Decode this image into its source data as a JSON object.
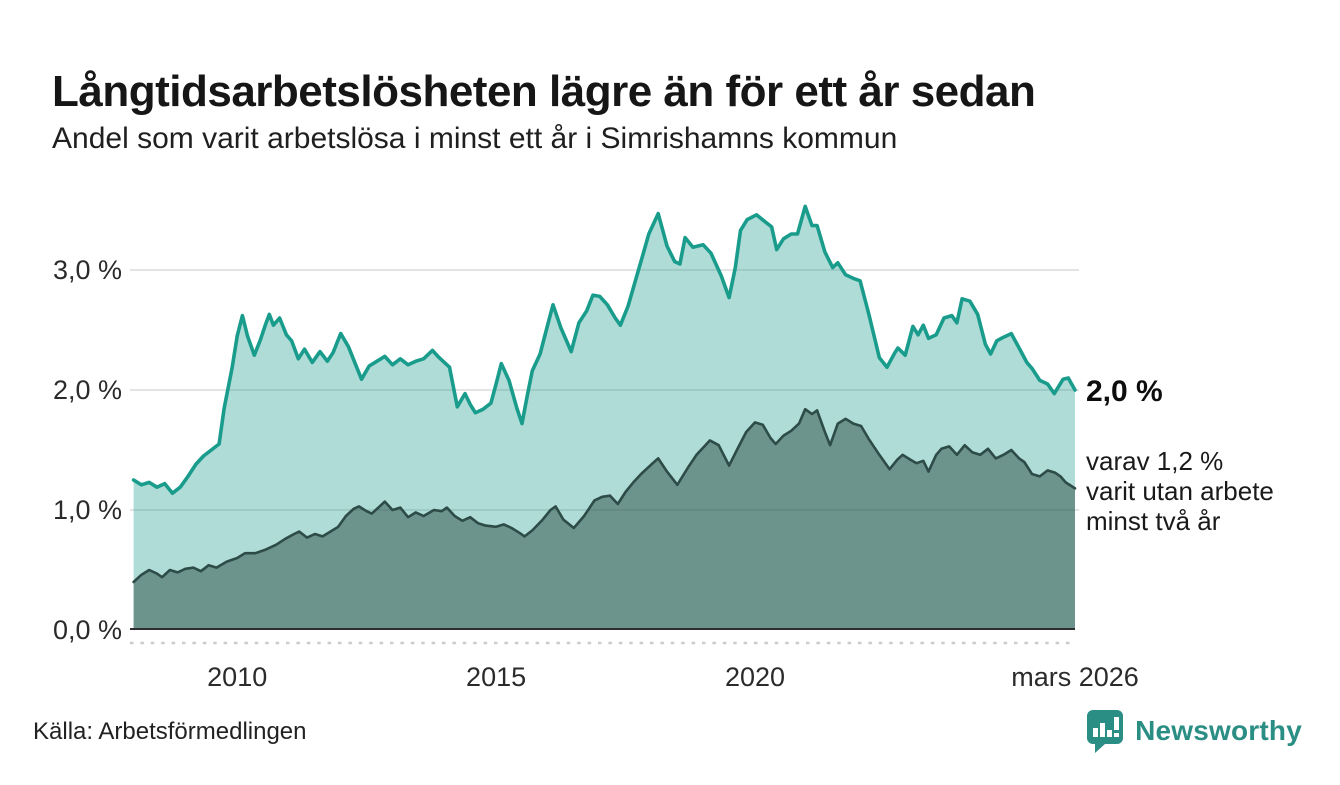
{
  "header": {
    "title": "Långtidsarbetslösheten lägre än för ett år sedan",
    "subtitle": "Andel som varit arbetslösa i minst ett år i Simrishamns kommun"
  },
  "annotations": {
    "latest_total": "2,0 %",
    "note_lines": [
      "varav 1,2 %",
      "varit utan arbete",
      "minst två år"
    ]
  },
  "footer": {
    "source": "Källa: Arbetsförmedlingen",
    "brand": "Newsworthy"
  },
  "colors": {
    "teal_line": "#1a9c8c",
    "teal_fill": "rgba(26,156,140,0.35)",
    "dark_line": "#2e4c47",
    "dark_fill": "rgba(37,66,61,0.48)",
    "gridline": "#dcdcdc",
    "axis_line": "#2f2f2f",
    "axis_text": "#2b2b2b",
    "tick_dash": "#cccccc",
    "brand_teal": "#2b8e85"
  },
  "chart_data": {
    "type": "area",
    "title": "Långtidsarbetslösheten lägre än för ett år sedan",
    "subtitle": "Andel som varit arbetslösa i minst ett år i Simrishamns kommun",
    "xlabel": "",
    "ylabel": "",
    "x_range": [
      2007.93,
      2026.18
    ],
    "y_range": [
      0,
      3.6
    ],
    "grid": true,
    "legend": "none",
    "x_ticks": [
      {
        "label": "2010",
        "year": 2010
      },
      {
        "label": "2015",
        "year": 2015
      },
      {
        "label": "2020",
        "year": 2020
      },
      {
        "label": "mars 2026",
        "year": 2026.18
      }
    ],
    "y_ticks": [
      {
        "label": "0,0 %",
        "value": 0
      },
      {
        "label": "1,0 %",
        "value": 1
      },
      {
        "label": "2,0 %",
        "value": 2
      },
      {
        "label": "3,0 %",
        "value": 3
      }
    ],
    "series": [
      {
        "name": "Arbetslösa minst ett år",
        "end_label": "2,0 %",
        "points": [
          [
            2008.0,
            1.25
          ],
          [
            2008.15,
            1.21
          ],
          [
            2008.3,
            1.23
          ],
          [
            2008.45,
            1.19
          ],
          [
            2008.6,
            1.22
          ],
          [
            2008.75,
            1.14
          ],
          [
            2008.9,
            1.19
          ],
          [
            2009.05,
            1.28
          ],
          [
            2009.2,
            1.38
          ],
          [
            2009.35,
            1.45
          ],
          [
            2009.5,
            1.5
          ],
          [
            2009.65,
            1.55
          ],
          [
            2009.75,
            1.85
          ],
          [
            2009.9,
            2.18
          ],
          [
            2010.0,
            2.45
          ],
          [
            2010.1,
            2.62
          ],
          [
            2010.2,
            2.45
          ],
          [
            2010.33,
            2.29
          ],
          [
            2010.45,
            2.42
          ],
          [
            2010.55,
            2.55
          ],
          [
            2010.62,
            2.63
          ],
          [
            2010.7,
            2.54
          ],
          [
            2010.82,
            2.6
          ],
          [
            2010.95,
            2.46
          ],
          [
            2011.05,
            2.41
          ],
          [
            2011.18,
            2.26
          ],
          [
            2011.3,
            2.34
          ],
          [
            2011.45,
            2.23
          ],
          [
            2011.6,
            2.32
          ],
          [
            2011.74,
            2.24
          ],
          [
            2011.85,
            2.31
          ],
          [
            2012.0,
            2.47
          ],
          [
            2012.15,
            2.36
          ],
          [
            2012.28,
            2.22
          ],
          [
            2012.4,
            2.09
          ],
          [
            2012.55,
            2.2
          ],
          [
            2012.7,
            2.24
          ],
          [
            2012.85,
            2.28
          ],
          [
            2013.0,
            2.21
          ],
          [
            2013.15,
            2.26
          ],
          [
            2013.3,
            2.21
          ],
          [
            2013.45,
            2.24
          ],
          [
            2013.6,
            2.26
          ],
          [
            2013.77,
            2.33
          ],
          [
            2013.9,
            2.27
          ],
          [
            2014.1,
            2.19
          ],
          [
            2014.25,
            1.86
          ],
          [
            2014.4,
            1.97
          ],
          [
            2014.5,
            1.88
          ],
          [
            2014.6,
            1.81
          ],
          [
            2014.75,
            1.84
          ],
          [
            2014.9,
            1.89
          ],
          [
            2015.0,
            2.05
          ],
          [
            2015.1,
            2.22
          ],
          [
            2015.25,
            2.08
          ],
          [
            2015.4,
            1.85
          ],
          [
            2015.5,
            1.72
          ],
          [
            2015.6,
            1.95
          ],
          [
            2015.7,
            2.16
          ],
          [
            2015.85,
            2.3
          ],
          [
            2016.0,
            2.55
          ],
          [
            2016.1,
            2.71
          ],
          [
            2016.25,
            2.52
          ],
          [
            2016.45,
            2.32
          ],
          [
            2016.6,
            2.56
          ],
          [
            2016.75,
            2.66
          ],
          [
            2016.87,
            2.79
          ],
          [
            2017.0,
            2.78
          ],
          [
            2017.15,
            2.71
          ],
          [
            2017.3,
            2.6
          ],
          [
            2017.4,
            2.54
          ],
          [
            2017.55,
            2.7
          ],
          [
            2017.65,
            2.85
          ],
          [
            2017.85,
            3.15
          ],
          [
            2017.95,
            3.3
          ],
          [
            2018.13,
            3.47
          ],
          [
            2018.3,
            3.2
          ],
          [
            2018.45,
            3.07
          ],
          [
            2018.55,
            3.05
          ],
          [
            2018.65,
            3.27
          ],
          [
            2018.8,
            3.19
          ],
          [
            2019.0,
            3.21
          ],
          [
            2019.15,
            3.14
          ],
          [
            2019.35,
            2.95
          ],
          [
            2019.5,
            2.77
          ],
          [
            2019.62,
            3.02
          ],
          [
            2019.72,
            3.33
          ],
          [
            2019.85,
            3.42
          ],
          [
            2020.03,
            3.46
          ],
          [
            2020.2,
            3.4
          ],
          [
            2020.32,
            3.36
          ],
          [
            2020.42,
            3.17
          ],
          [
            2020.55,
            3.26
          ],
          [
            2020.7,
            3.3
          ],
          [
            2020.82,
            3.3
          ],
          [
            2020.97,
            3.53
          ],
          [
            2021.1,
            3.37
          ],
          [
            2021.2,
            3.37
          ],
          [
            2021.35,
            3.15
          ],
          [
            2021.5,
            3.02
          ],
          [
            2021.6,
            3.06
          ],
          [
            2021.75,
            2.96
          ],
          [
            2021.9,
            2.93
          ],
          [
            2022.03,
            2.91
          ],
          [
            2022.2,
            2.63
          ],
          [
            2022.4,
            2.27
          ],
          [
            2022.55,
            2.19
          ],
          [
            2022.7,
            2.31
          ],
          [
            2022.76,
            2.35
          ],
          [
            2022.9,
            2.29
          ],
          [
            2023.05,
            2.53
          ],
          [
            2023.15,
            2.46
          ],
          [
            2023.25,
            2.54
          ],
          [
            2023.35,
            2.43
          ],
          [
            2023.5,
            2.46
          ],
          [
            2023.65,
            2.6
          ],
          [
            2023.8,
            2.62
          ],
          [
            2023.9,
            2.56
          ],
          [
            2024.0,
            2.76
          ],
          [
            2024.15,
            2.74
          ],
          [
            2024.3,
            2.63
          ],
          [
            2024.45,
            2.38
          ],
          [
            2024.55,
            2.3
          ],
          [
            2024.67,
            2.41
          ],
          [
            2024.8,
            2.44
          ],
          [
            2024.95,
            2.47
          ],
          [
            2025.1,
            2.35
          ],
          [
            2025.25,
            2.23
          ],
          [
            2025.35,
            2.18
          ],
          [
            2025.5,
            2.08
          ],
          [
            2025.65,
            2.05
          ],
          [
            2025.78,
            1.97
          ],
          [
            2025.95,
            2.09
          ],
          [
            2026.05,
            2.1
          ],
          [
            2026.18,
            2.0
          ]
        ]
      },
      {
        "name": "Varav utan arbete minst två år",
        "end_label": "1,2 %",
        "points": [
          [
            2008.0,
            0.4
          ],
          [
            2008.15,
            0.46
          ],
          [
            2008.3,
            0.5
          ],
          [
            2008.45,
            0.47
          ],
          [
            2008.55,
            0.44
          ],
          [
            2008.7,
            0.5
          ],
          [
            2008.85,
            0.48
          ],
          [
            2009.0,
            0.51
          ],
          [
            2009.15,
            0.52
          ],
          [
            2009.3,
            0.49
          ],
          [
            2009.45,
            0.54
          ],
          [
            2009.6,
            0.52
          ],
          [
            2009.8,
            0.57
          ],
          [
            2010.0,
            0.6
          ],
          [
            2010.15,
            0.64
          ],
          [
            2010.35,
            0.64
          ],
          [
            2010.55,
            0.67
          ],
          [
            2010.75,
            0.71
          ],
          [
            2010.93,
            0.76
          ],
          [
            2011.1,
            0.8
          ],
          [
            2011.2,
            0.82
          ],
          [
            2011.35,
            0.77
          ],
          [
            2011.5,
            0.8
          ],
          [
            2011.65,
            0.78
          ],
          [
            2011.8,
            0.82
          ],
          [
            2011.95,
            0.86
          ],
          [
            2012.1,
            0.95
          ],
          [
            2012.25,
            1.01
          ],
          [
            2012.35,
            1.03
          ],
          [
            2012.5,
            0.99
          ],
          [
            2012.6,
            0.97
          ],
          [
            2012.75,
            1.03
          ],
          [
            2012.85,
            1.07
          ],
          [
            2013.0,
            1.0
          ],
          [
            2013.15,
            1.02
          ],
          [
            2013.3,
            0.94
          ],
          [
            2013.45,
            0.98
          ],
          [
            2013.6,
            0.95
          ],
          [
            2013.8,
            1.0
          ],
          [
            2013.95,
            0.99
          ],
          [
            2014.05,
            1.02
          ],
          [
            2014.2,
            0.95
          ],
          [
            2014.35,
            0.91
          ],
          [
            2014.5,
            0.94
          ],
          [
            2014.65,
            0.89
          ],
          [
            2014.8,
            0.87
          ],
          [
            2015.0,
            0.86
          ],
          [
            2015.15,
            0.88
          ],
          [
            2015.3,
            0.85
          ],
          [
            2015.45,
            0.81
          ],
          [
            2015.55,
            0.78
          ],
          [
            2015.7,
            0.83
          ],
          [
            2015.9,
            0.92
          ],
          [
            2016.05,
            1.0
          ],
          [
            2016.15,
            1.03
          ],
          [
            2016.3,
            0.92
          ],
          [
            2016.5,
            0.85
          ],
          [
            2016.7,
            0.95
          ],
          [
            2016.9,
            1.08
          ],
          [
            2017.05,
            1.11
          ],
          [
            2017.2,
            1.12
          ],
          [
            2017.35,
            1.05
          ],
          [
            2017.5,
            1.15
          ],
          [
            2017.65,
            1.23
          ],
          [
            2017.8,
            1.3
          ],
          [
            2018.0,
            1.38
          ],
          [
            2018.13,
            1.43
          ],
          [
            2018.3,
            1.32
          ],
          [
            2018.5,
            1.21
          ],
          [
            2018.7,
            1.35
          ],
          [
            2018.87,
            1.46
          ],
          [
            2019.0,
            1.52
          ],
          [
            2019.13,
            1.58
          ],
          [
            2019.3,
            1.54
          ],
          [
            2019.5,
            1.37
          ],
          [
            2019.65,
            1.5
          ],
          [
            2019.83,
            1.65
          ],
          [
            2020.0,
            1.73
          ],
          [
            2020.15,
            1.71
          ],
          [
            2020.3,
            1.6
          ],
          [
            2020.4,
            1.55
          ],
          [
            2020.55,
            1.62
          ],
          [
            2020.7,
            1.66
          ],
          [
            2020.85,
            1.72
          ],
          [
            2020.97,
            1.84
          ],
          [
            2021.1,
            1.8
          ],
          [
            2021.2,
            1.83
          ],
          [
            2021.35,
            1.65
          ],
          [
            2021.45,
            1.54
          ],
          [
            2021.6,
            1.72
          ],
          [
            2021.75,
            1.76
          ],
          [
            2021.9,
            1.72
          ],
          [
            2022.05,
            1.7
          ],
          [
            2022.2,
            1.59
          ],
          [
            2022.4,
            1.46
          ],
          [
            2022.6,
            1.34
          ],
          [
            2022.75,
            1.42
          ],
          [
            2022.85,
            1.46
          ],
          [
            2023.0,
            1.42
          ],
          [
            2023.12,
            1.39
          ],
          [
            2023.25,
            1.41
          ],
          [
            2023.35,
            1.32
          ],
          [
            2023.5,
            1.46
          ],
          [
            2023.6,
            1.51
          ],
          [
            2023.75,
            1.53
          ],
          [
            2023.9,
            1.46
          ],
          [
            2024.05,
            1.54
          ],
          [
            2024.2,
            1.48
          ],
          [
            2024.35,
            1.46
          ],
          [
            2024.5,
            1.51
          ],
          [
            2024.65,
            1.43
          ],
          [
            2024.8,
            1.46
          ],
          [
            2024.95,
            1.5
          ],
          [
            2025.1,
            1.43
          ],
          [
            2025.2,
            1.4
          ],
          [
            2025.35,
            1.3
          ],
          [
            2025.5,
            1.28
          ],
          [
            2025.65,
            1.33
          ],
          [
            2025.8,
            1.31
          ],
          [
            2025.9,
            1.28
          ],
          [
            2026.0,
            1.23
          ],
          [
            2026.18,
            1.18
          ]
        ]
      }
    ]
  }
}
